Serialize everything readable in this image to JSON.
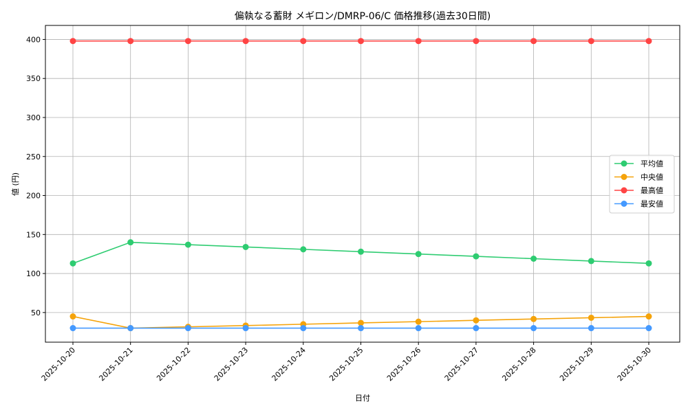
{
  "chart_data": {
    "type": "line",
    "title": "偏執なる蓄財 メギロン/DMRP-06/C 価格推移(過去30日間)",
    "xlabel": "日付",
    "ylabel": "値 (円)",
    "categories": [
      "2025-10-20",
      "2025-10-21",
      "2025-10-22",
      "2025-10-23",
      "2025-10-24",
      "2025-10-25",
      "2025-10-26",
      "2025-10-27",
      "2025-10-28",
      "2025-10-29",
      "2025-10-30"
    ],
    "ylim": [
      12,
      418
    ],
    "yticks": [
      50,
      100,
      150,
      200,
      250,
      300,
      350,
      400
    ],
    "grid": true,
    "legend_position": "right",
    "series": [
      {
        "name": "平均値",
        "color": "#2ecc71",
        "values": [
          113,
          140,
          137,
          134,
          131,
          128,
          125,
          122,
          119,
          116,
          113
        ]
      },
      {
        "name": "中央値",
        "color": "#f5a30a",
        "values": [
          45,
          30,
          31.7,
          33.3,
          35,
          36.7,
          38.3,
          40,
          41.7,
          43.3,
          45
        ]
      },
      {
        "name": "最高値",
        "color": "#ff4444",
        "values": [
          398,
          398,
          398,
          398,
          398,
          398,
          398,
          398,
          398,
          398,
          398
        ]
      },
      {
        "name": "最安値",
        "color": "#4499ff",
        "values": [
          30,
          30,
          30,
          30,
          30,
          30,
          30,
          30,
          30,
          30,
          30
        ]
      }
    ]
  }
}
